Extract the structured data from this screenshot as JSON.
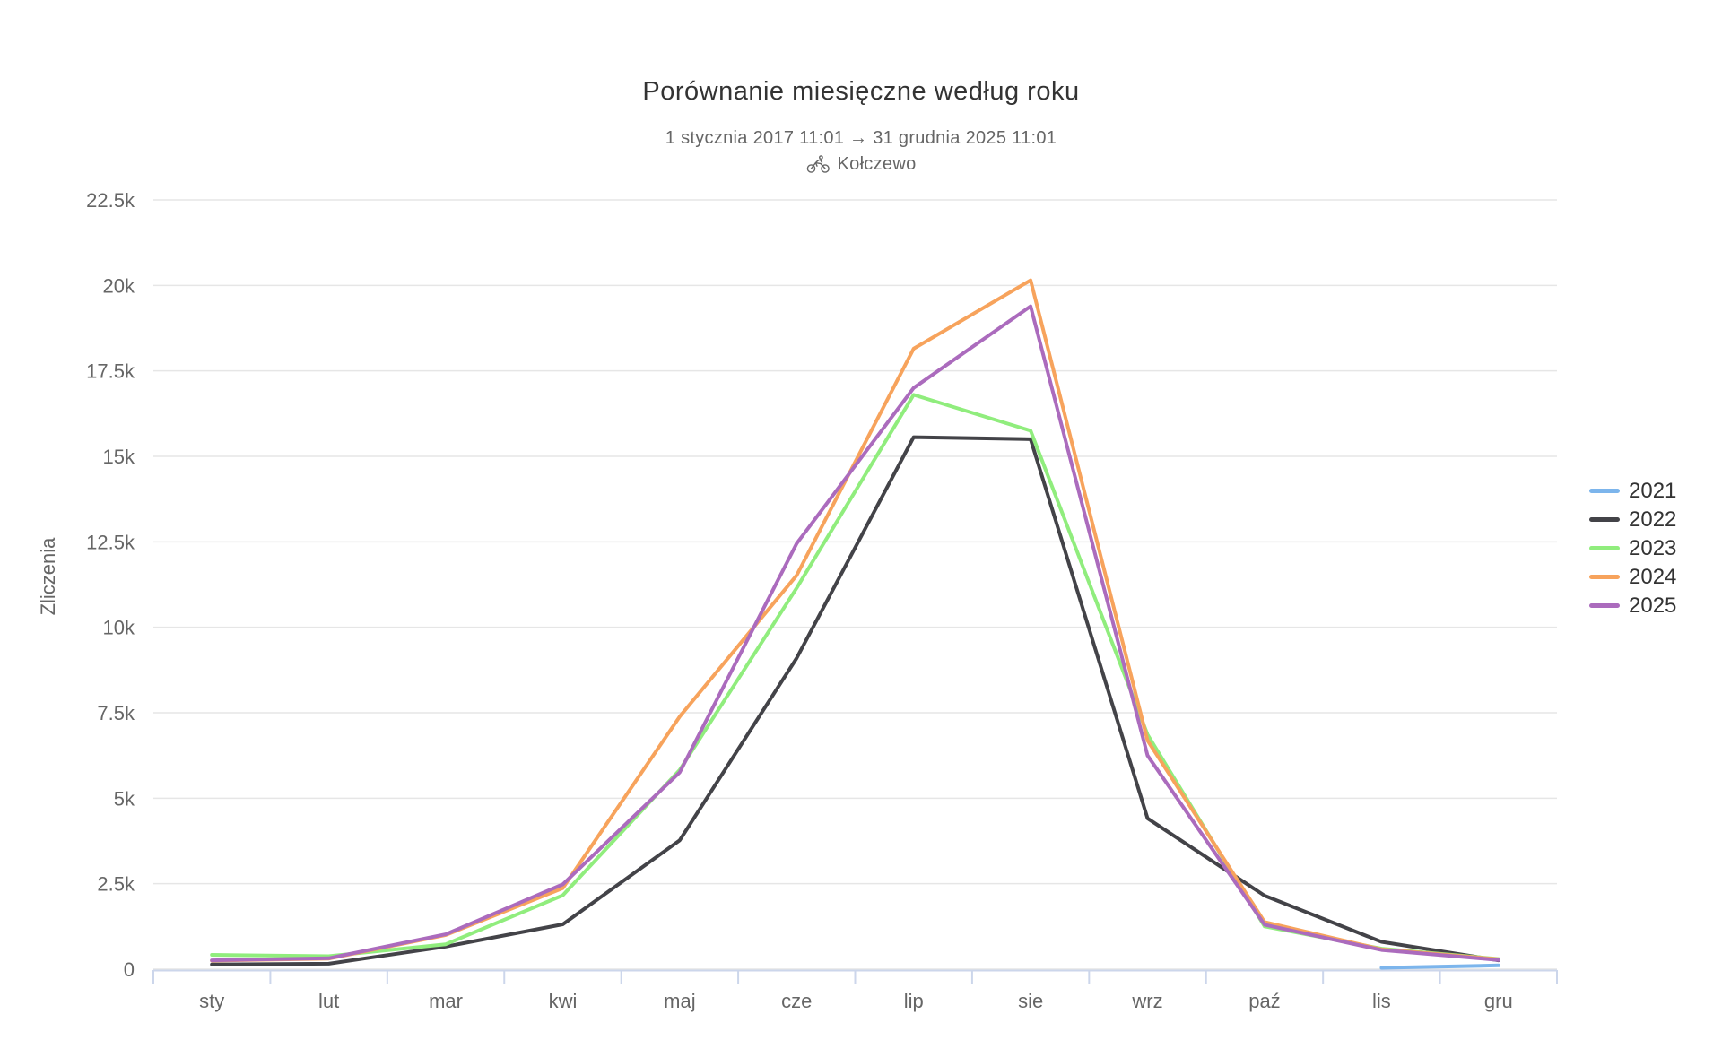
{
  "header": {
    "title": "Porównanie miesięczne według roku",
    "subtitle": "1 stycznia 2017 11:01 → 31 grudnia 2025 11:01",
    "location": "Kołczewo",
    "location_icon": "cyclist-icon"
  },
  "chart_data": {
    "type": "line",
    "title": "Porównanie miesięczne według roku",
    "subtitle": "1 stycznia 2017 11:01 → 31 grudnia 2025 11:01",
    "xlabel": "",
    "ylabel": "Zliczenia",
    "categories": [
      "sty",
      "lut",
      "mar",
      "kwi",
      "maj",
      "cze",
      "lip",
      "sie",
      "wrz",
      "paź",
      "lis",
      "gru"
    ],
    "y_ticks": [
      "0",
      "2.5k",
      "5k",
      "7.5k",
      "10k",
      "12.5k",
      "15k",
      "17.5k",
      "20k",
      "22.5k"
    ],
    "y_tick_values": [
      0,
      2500,
      5000,
      7500,
      10000,
      12500,
      15000,
      17500,
      20000,
      22500
    ],
    "ylim": [
      0,
      22500
    ],
    "grid": true,
    "legend_position": "right",
    "series": [
      {
        "name": "2021",
        "color": "#7cb5ec",
        "values": [
          null,
          null,
          null,
          null,
          null,
          null,
          null,
          null,
          null,
          null,
          40,
          110
        ]
      },
      {
        "name": "2022",
        "color": "#434348",
        "values": [
          140,
          160,
          660,
          1310,
          3770,
          9100,
          15560,
          15500,
          4410,
          2150,
          800,
          260
        ]
      },
      {
        "name": "2023",
        "color": "#90ed7d",
        "values": [
          420,
          380,
          730,
          2160,
          5830,
          11150,
          16800,
          15750,
          6860,
          1250,
          600,
          300
        ]
      },
      {
        "name": "2024",
        "color": "#f7a35c",
        "values": [
          250,
          310,
          1000,
          2370,
          7390,
          11520,
          18150,
          20150,
          6690,
          1380,
          580,
          290
        ]
      },
      {
        "name": "2025",
        "color": "#ab6bbd",
        "values": [
          260,
          320,
          1020,
          2480,
          5760,
          12450,
          17000,
          19390,
          6250,
          1300,
          560,
          270
        ]
      }
    ]
  },
  "colors": {
    "grid": "#e6e6e6",
    "axis": "#ccd6eb",
    "label": "#666666",
    "title": "#333333",
    "legend_text": "#333333"
  }
}
